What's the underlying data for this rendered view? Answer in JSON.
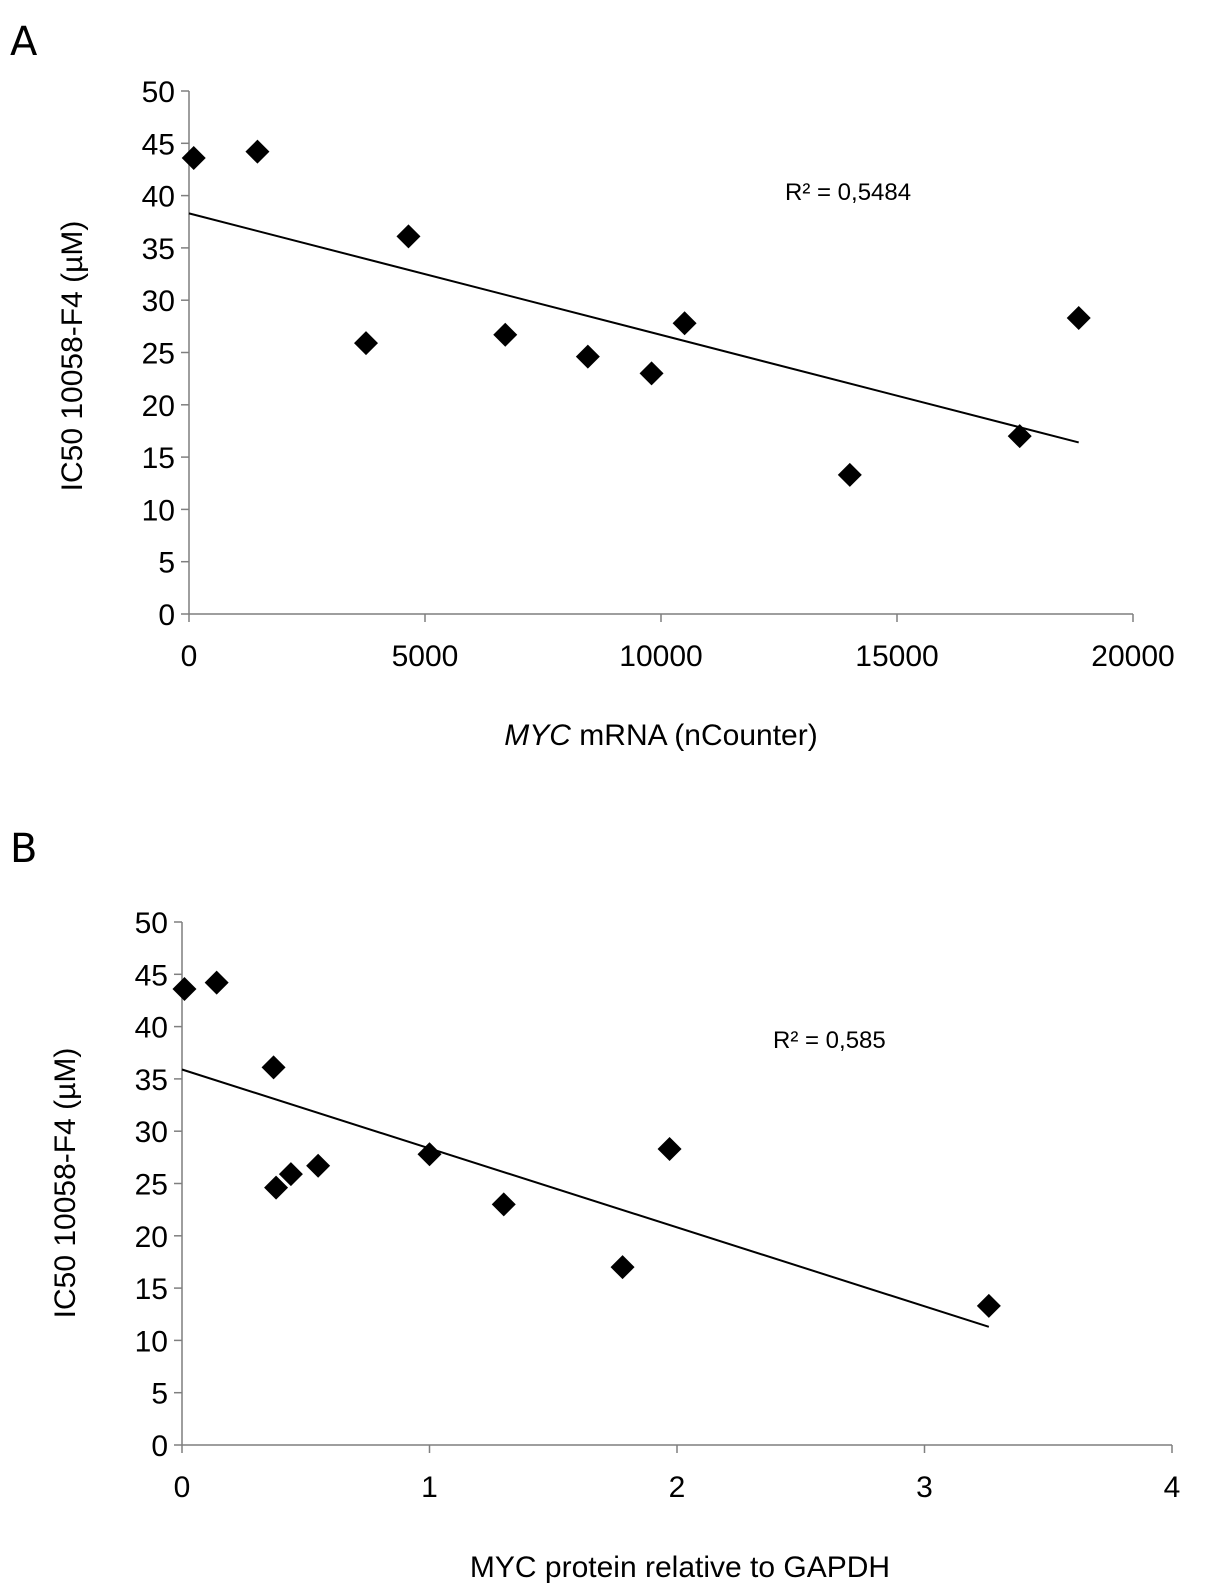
{
  "chart_data": [
    {
      "panel": "A",
      "type": "scatter",
      "title": "",
      "xlabel_italic": "MYC",
      "xlabel_rest": " mRNA (nCounter)",
      "ylabel": "IC50 10058-F4 (µM)",
      "xlim": [
        0,
        20000
      ],
      "ylim": [
        0,
        50
      ],
      "xticks": [
        0,
        5000,
        10000,
        15000,
        20000
      ],
      "yticks": [
        0,
        5,
        10,
        15,
        20,
        25,
        30,
        35,
        40,
        45,
        50
      ],
      "points": [
        {
          "x": 100,
          "y": 43.6
        },
        {
          "x": 1450,
          "y": 44.2
        },
        {
          "x": 3750,
          "y": 25.9
        },
        {
          "x": 4650,
          "y": 36.1
        },
        {
          "x": 6700,
          "y": 26.7
        },
        {
          "x": 8450,
          "y": 24.6
        },
        {
          "x": 9800,
          "y": 23.0
        },
        {
          "x": 10500,
          "y": 27.8
        },
        {
          "x": 14000,
          "y": 13.3
        },
        {
          "x": 17600,
          "y": 17.0
        },
        {
          "x": 18850,
          "y": 28.3
        }
      ],
      "trendline": {
        "x": [
          0,
          18850
        ],
        "y": [
          38.3,
          16.4
        ]
      },
      "r2_label": "R² = 0,5484",
      "grid": false
    },
    {
      "panel": "B",
      "type": "scatter",
      "title": "",
      "xlabel_italic": "",
      "xlabel_rest": "MYC protein relative to GAPDH",
      "ylabel": "IC50 10058-F4 (µM)",
      "xlim": [
        0,
        4
      ],
      "ylim": [
        0,
        50
      ],
      "xticks": [
        0,
        1,
        2,
        3,
        4
      ],
      "yticks": [
        0,
        5,
        10,
        15,
        20,
        25,
        30,
        35,
        40,
        45,
        50
      ],
      "points": [
        {
          "x": 0.01,
          "y": 43.6
        },
        {
          "x": 0.14,
          "y": 44.2
        },
        {
          "x": 0.37,
          "y": 36.1
        },
        {
          "x": 0.38,
          "y": 24.6
        },
        {
          "x": 0.44,
          "y": 25.9
        },
        {
          "x": 0.55,
          "y": 26.7
        },
        {
          "x": 1.0,
          "y": 27.8
        },
        {
          "x": 1.3,
          "y": 23.0
        },
        {
          "x": 1.78,
          "y": 17.0
        },
        {
          "x": 1.97,
          "y": 28.3
        },
        {
          "x": 3.26,
          "y": 13.3
        }
      ],
      "trendline": {
        "x": [
          0,
          3.26
        ],
        "y": [
          35.9,
          11.3
        ]
      },
      "r2_label": "R² = 0,585",
      "grid": false
    }
  ]
}
